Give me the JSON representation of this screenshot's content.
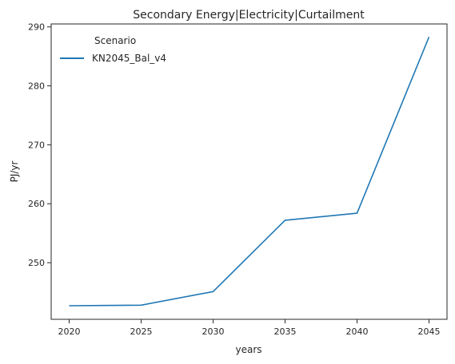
{
  "chart_data": {
    "type": "line",
    "title": "Secondary Energy|Electricity|Curtailment",
    "xlabel": "years",
    "ylabel": "PJ/yr",
    "x": [
      2020,
      2025,
      2030,
      2035,
      2040,
      2045
    ],
    "x_ticks": [
      "2020",
      "2025",
      "2030",
      "2035",
      "2040",
      "2045"
    ],
    "y_ticks": [
      "250",
      "260",
      "270",
      "280",
      "290"
    ],
    "xlim": [
      2018.75,
      2046.25
    ],
    "ylim": [
      240.4,
      290.5
    ],
    "grid": false,
    "legend": {
      "title": "Scenario",
      "placement": "top-left"
    },
    "series": [
      {
        "name": "KN2045_Bal_v4",
        "color": "#1f77b4",
        "values": [
          242.7,
          242.8,
          245.1,
          257.2,
          258.4,
          288.3
        ]
      }
    ]
  }
}
